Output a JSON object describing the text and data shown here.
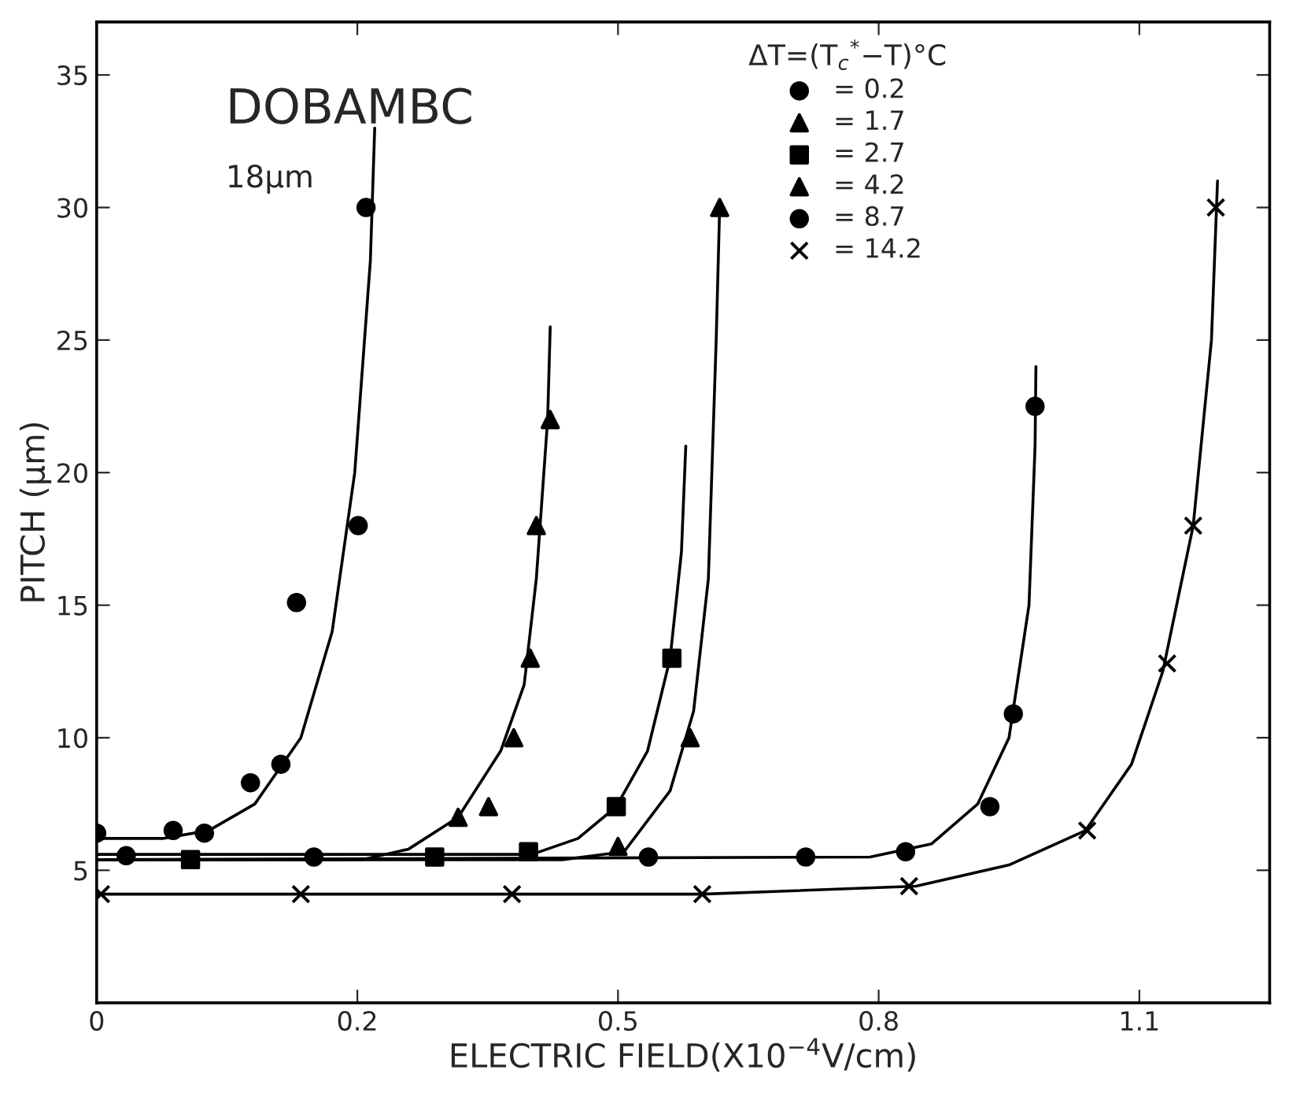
{
  "chart_data": {
    "type": "scatter",
    "xlabel": "ELECTRIC FIELD(X10$^{−4}$V/cm)",
    "ylabel": "PITCH (μm)",
    "legend_title": "ΔT=(T$_{c}$$^{*}$−T)°C",
    "annotations": [
      "DOBAMBC",
      "18μm"
    ],
    "xlim": [
      -0.1,
      1.25
    ],
    "ylim": [
      0,
      37
    ],
    "xticks": [
      {
        "value": -0.1,
        "label": "0"
      },
      0.2,
      0.5,
      0.8,
      1.1
    ],
    "yticks": [
      5,
      10,
      15,
      20,
      25,
      30,
      35
    ],
    "grid": false,
    "legend": "top",
    "series": [
      {
        "name": "= 0.2",
        "marker": "circle",
        "color": "#000000",
        "x": [
          -0.1,
          -0.012,
          0.024,
          0.077,
          0.112,
          0.13,
          0.201,
          0.21
        ],
        "values": [
          6.4,
          6.5,
          6.4,
          8.3,
          9.0,
          15.1,
          18.0,
          30.0
        ]
      },
      {
        "name": "= 1.7",
        "marker": "triangle",
        "color": "#000000",
        "x": [
          0.316,
          0.351,
          0.38,
          0.399,
          0.406,
          0.422
        ],
        "values": [
          7.0,
          7.4,
          10.0,
          13.0,
          18.0,
          22.0
        ]
      },
      {
        "name": "= 2.7",
        "marker": "square",
        "color": "#000000",
        "x": [
          0.008,
          0.289,
          0.397,
          0.498,
          0.562
        ],
        "values": [
          5.4,
          5.5,
          5.7,
          7.4,
          13.0
        ]
      },
      {
        "name": "= 4.2",
        "marker": "triangle",
        "color": "#000000",
        "x": [
          0.5,
          0.583,
          0.617
        ],
        "values": [
          5.9,
          10.0,
          30.0
        ]
      },
      {
        "name": "= 8.7",
        "marker": "circle",
        "color": "#000000",
        "x": [
          -0.066,
          0.15,
          0.535,
          0.716,
          0.831,
          0.928,
          0.955,
          0.98
        ],
        "values": [
          5.55,
          5.5,
          5.5,
          5.5,
          5.7,
          7.4,
          10.9,
          22.5
        ]
      },
      {
        "name": "= 14.2",
        "marker": "cross",
        "color": "#000000",
        "x": [
          -0.095,
          0.135,
          0.378,
          0.597,
          0.835,
          1.04,
          1.132,
          1.162,
          1.188
        ],
        "values": [
          4.1,
          4.1,
          4.1,
          4.1,
          4.4,
          6.5,
          12.8,
          18.0,
          30.0
        ]
      },
      {
        "type": "line",
        "marker": "none",
        "color": "#000000",
        "x": [
          -0.1,
          -0.024,
          0.029,
          0.082,
          0.135,
          0.171,
          0.197,
          0.215,
          0.22
        ],
        "values": [
          6.2,
          6.2,
          6.5,
          7.5,
          10.0,
          14.0,
          20.0,
          28.0,
          33.0
        ]
      },
      {
        "type": "line",
        "marker": "none",
        "color": "#000000",
        "x": [
          -0.1,
          0.206,
          0.259,
          0.316,
          0.365,
          0.392,
          0.406,
          0.419,
          0.422
        ],
        "values": [
          5.4,
          5.4,
          5.8,
          7.0,
          9.5,
          12.0,
          16.0,
          22.0,
          25.5
        ]
      },
      {
        "type": "line",
        "marker": "none",
        "color": "#000000",
        "x": [
          -0.1,
          0.401,
          0.454,
          0.498,
          0.534,
          0.56,
          0.573,
          0.578
        ],
        "values": [
          5.6,
          5.6,
          6.2,
          7.4,
          9.5,
          13.0,
          17.0,
          21.0
        ]
      },
      {
        "type": "line",
        "marker": "none",
        "color": "#000000",
        "x": [
          -0.1,
          0.436,
          0.507,
          0.56,
          0.587,
          0.604,
          0.613,
          0.617
        ],
        "values": [
          5.4,
          5.4,
          5.7,
          8.0,
          11.0,
          16.0,
          25.0,
          30.0
        ]
      },
      {
        "type": "line",
        "marker": "none",
        "color": "#000000",
        "x": [
          -0.1,
          0.79,
          0.861,
          0.914,
          0.95,
          0.973,
          0.98,
          0.981
        ],
        "values": [
          5.4,
          5.5,
          6.0,
          7.5,
          10.0,
          15.0,
          21.0,
          24.0
        ]
      },
      {
        "type": "line",
        "marker": "none",
        "color": "#000000",
        "x": [
          -0.1,
          0.597,
          0.843,
          0.95,
          1.038,
          1.091,
          1.127,
          1.162,
          1.183,
          1.19
        ],
        "values": [
          4.1,
          4.1,
          4.4,
          5.2,
          6.5,
          9.0,
          12.5,
          18.0,
          25.0,
          31.0
        ]
      }
    ]
  }
}
